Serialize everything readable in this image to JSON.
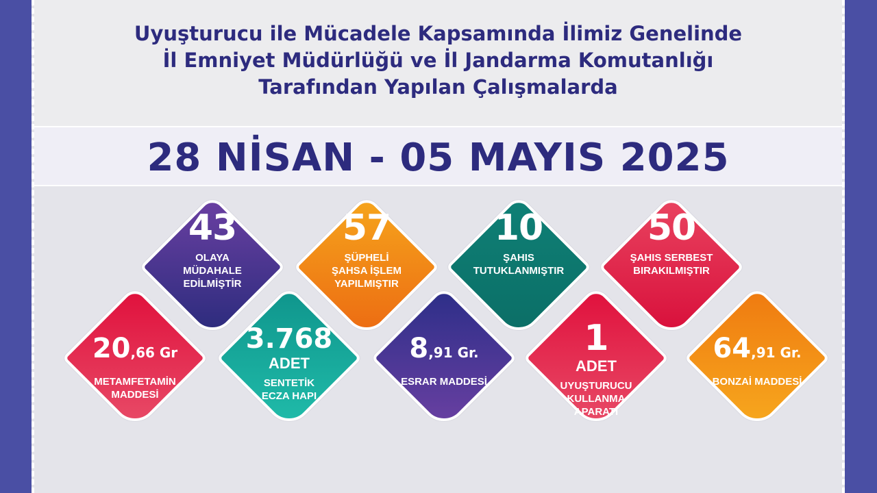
{
  "header": {
    "title_lines": [
      "Uyuşturucu ile Mücadele Kapsamında İlimiz Genelinde",
      "İl Emniyet Müdürlüğü ve İl Jandarma Komutanlığı",
      "Tarafından Yapılan Çalışmalarda"
    ],
    "date_range": "28 NİSAN - 05 MAYIS 2025"
  },
  "colors": {
    "title": "#2d2b7e",
    "border": "#4a4fa4"
  },
  "stats": [
    {
      "value": "43",
      "lines": [
        "OLAYA",
        "MÜDAHALE",
        "EDİLMİŞTİR"
      ],
      "gradient": [
        "#6b40a2",
        "#2a2b7c"
      ]
    },
    {
      "value": "57",
      "lines": [
        "ŞÜPHELİ",
        "ŞAHSA İŞLEM",
        "YAPILMIŞTIR"
      ],
      "gradient": [
        "#f6a51c",
        "#ec6a12"
      ]
    },
    {
      "value": "10",
      "lines": [
        "ŞAHIS",
        "TUTUKLANMIŞTIR"
      ],
      "gradient": [
        "#0f8076",
        "#0b6e66"
      ]
    },
    {
      "value": "50",
      "lines": [
        "ŞAHIS SERBEST",
        "BIRAKILMIŞTIR"
      ],
      "gradient": [
        "#e94460",
        "#d80e3a"
      ]
    },
    {
      "value": "20",
      "decimal": ",66 Gr",
      "lines": [
        "METAMFETAMİN",
        "MADDESİ"
      ],
      "gradient": [
        "#e0103c",
        "#e84c68"
      ]
    },
    {
      "value": "3.768",
      "sub": "ADET",
      "lines": [
        "SENTETİK",
        "ECZA HAPI"
      ],
      "gradient": [
        "#0f958c",
        "#20bcaa"
      ]
    },
    {
      "value": "8",
      "decimal": ",91 Gr.",
      "lines": [
        "ESRAR MADDESİ"
      ],
      "gradient": [
        "#2c2e88",
        "#6a40a2"
      ]
    },
    {
      "value": "1",
      "sub": "ADET",
      "lines": [
        "UYUŞTURUCU",
        "KULLANMA",
        "APARATI"
      ],
      "gradient": [
        "#e0103c",
        "#e84c68"
      ]
    },
    {
      "value": "64",
      "decimal": ",91 Gr.",
      "lines": [
        "BONZAİ MADDESİ"
      ],
      "gradient": [
        "#ef7a10",
        "#f7a81e"
      ]
    }
  ]
}
